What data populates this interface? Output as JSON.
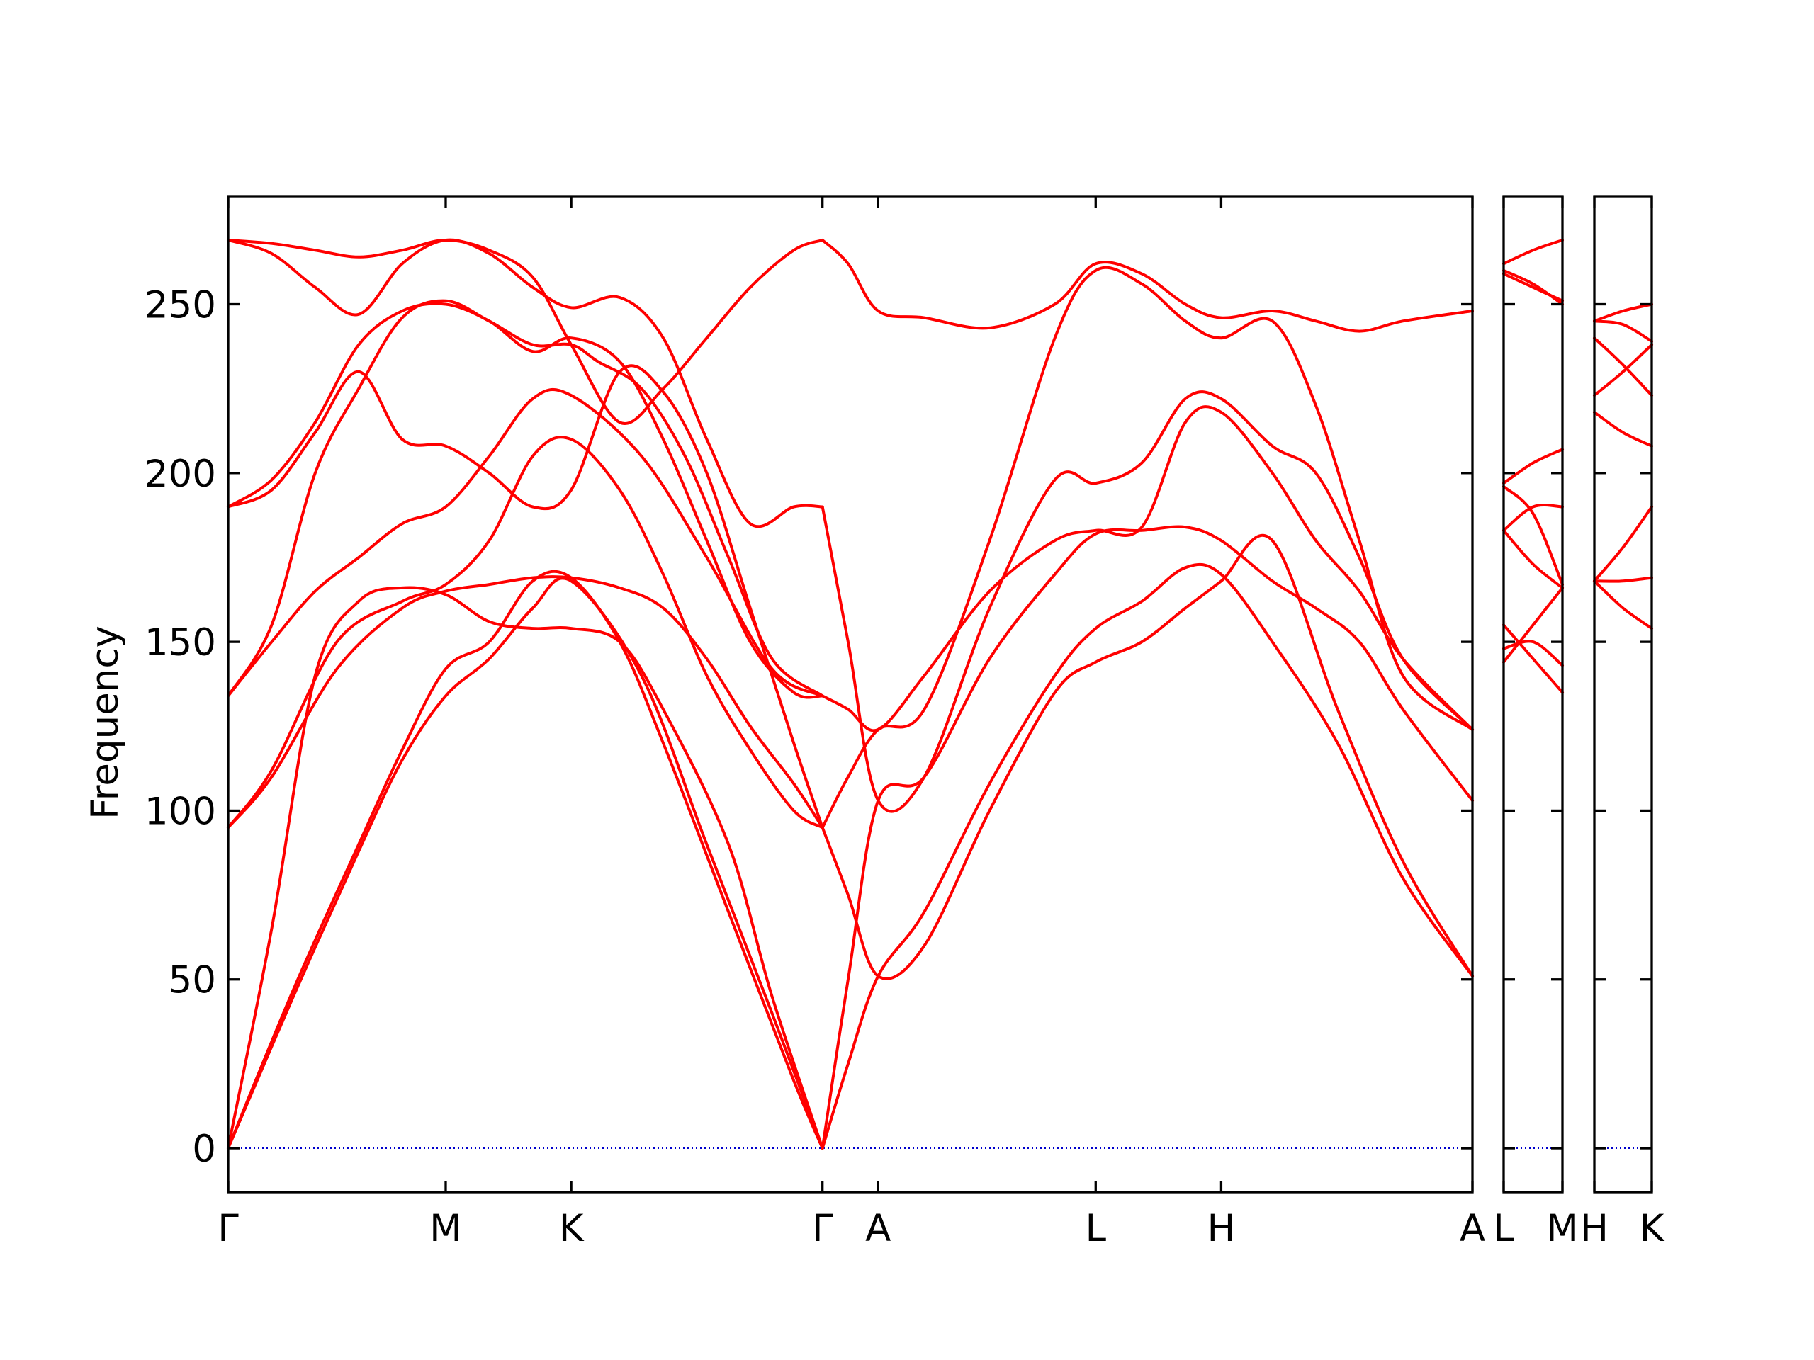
{
  "chart_data": {
    "type": "line",
    "ylabel": "Frequency",
    "ylim": [
      -13,
      282
    ],
    "yticks": [
      0,
      50,
      100,
      150,
      200,
      250
    ],
    "grid": false,
    "panels": [
      {
        "labels": [
          "Γ",
          "M",
          "K",
          "Γ",
          "A",
          "L",
          "H",
          "A"
        ],
        "positions": [
          0,
          1,
          1.577,
          2.732,
          2.988,
          3.988,
          4.565,
          5.72
        ],
        "series": [
          {
            "name": "",
            "x": [
              0,
              0.3,
              0.6,
              0.8,
              1.0,
              1.2,
              1.4,
              1.577,
              1.9,
              2.2,
              2.5,
              2.732
            ],
            "y": [
              0,
              45,
              88,
              115,
              134,
              145,
              160,
              168,
              140,
              90,
              40,
              0
            ]
          },
          {
            "name": "",
            "x": [
              0,
              0.3,
              0.6,
              0.8,
              1.0,
              1.2,
              1.4,
              1.577,
              1.8,
              2.0,
              2.3,
              2.6,
              2.732
            ],
            "y": [
              0,
              47,
              90,
              118,
              142,
              150,
              168,
              169,
              150,
              120,
              70,
              20,
              0
            ]
          },
          {
            "name": "",
            "x": [
              0,
              0.2,
              0.4,
              0.6,
              0.8,
              1.0,
              1.2,
              1.4,
              1.577,
              1.8,
              2.0,
              2.3,
              2.5,
              2.732
            ],
            "y": [
              0,
              65,
              140,
              162,
              166,
              164,
              156,
              154,
              154,
              150,
              130,
              90,
              45,
              0
            ]
          },
          {
            "name": "",
            "x": [
              0,
              0.2,
              0.5,
              0.8,
              1.0,
              1.2,
              1.4,
              1.577,
              1.8,
              2.0,
              2.2,
              2.4,
              2.6,
              2.732
            ],
            "y": [
              95,
              110,
              142,
              160,
              165,
              167,
              169,
              169,
              166,
              160,
              145,
              125,
              108,
              95
            ]
          },
          {
            "name": "",
            "x": [
              0,
              0.2,
              0.5,
              0.8,
              1.0,
              1.2,
              1.4,
              1.577,
              1.8,
              2.0,
              2.2,
              2.4,
              2.6,
              2.732
            ],
            "y": [
              95,
              112,
              150,
              162,
              167,
              180,
              205,
              210,
              195,
              170,
              140,
              118,
              100,
              95
            ]
          },
          {
            "name": "",
            "x": [
              0,
              0.2,
              0.4,
              0.6,
              0.8,
              1.0,
              1.2,
              1.4,
              1.577,
              1.9,
              2.2,
              2.5,
              2.732
            ],
            "y": [
              134,
              150,
              165,
              175,
              185,
              190,
              205,
              222,
              223,
              205,
              175,
              142,
              134
            ]
          },
          {
            "name": "",
            "x": [
              0,
              0.2,
              0.4,
              0.6,
              0.8,
              1.0,
              1.2,
              1.4,
              1.577,
              1.7,
              1.9,
              2.1,
              2.3,
              2.5,
              2.732
            ],
            "y": [
              134,
              155,
              200,
              225,
              246,
              251,
              245,
              238,
              238,
              233,
              225,
              205,
              175,
              145,
              134
            ]
          },
          {
            "name": "",
            "x": [
              0,
              0.2,
              0.4,
              0.6,
              0.8,
              1.0,
              1.2,
              1.4,
              1.577,
              1.8,
              2.0,
              2.2,
              2.4,
              2.6,
              2.732
            ],
            "y": [
              190,
              195,
              212,
              230,
              210,
              208,
              200,
              190,
              195,
              230,
              224,
              200,
              160,
              120,
              95
            ]
          },
          {
            "name": "",
            "x": [
              0,
              0.2,
              0.4,
              0.6,
              0.8,
              1.0,
              1.2,
              1.4,
              1.577,
              1.8,
              2.0,
              2.2,
              2.4,
              2.6,
              2.732
            ],
            "y": [
              190,
              198,
              215,
              238,
              248,
              250,
              245,
              236,
              240,
              233,
              210,
              180,
              150,
              135,
              134
            ]
          },
          {
            "name": "",
            "x": [
              0,
              0.2,
              0.4,
              0.6,
              0.8,
              1.0,
              1.2,
              1.4,
              1.577,
              1.8,
              2.0,
              2.2,
              2.4,
              2.6,
              2.732
            ],
            "y": [
              269,
              265,
              255,
              247,
              262,
              269,
              265,
              255,
              249,
              252,
              240,
              210,
              185,
              190,
              190
            ]
          },
          {
            "name": "",
            "x": [
              0,
              0.2,
              0.4,
              0.6,
              0.8,
              1.0,
              1.2,
              1.4,
              1.577,
              1.8,
              2.0,
              2.2,
              2.4,
              2.6,
              2.732
            ],
            "y": [
              269,
              268,
              266,
              264,
              266,
              269,
              266,
              258,
              238,
              215,
              225,
              240,
              255,
              266,
              269
            ]
          },
          {
            "name": "",
            "x": [
              2.732,
              2.85,
              2.988,
              3.2,
              3.5,
              3.8,
              3.988,
              4.2,
              4.4,
              4.565,
              4.8,
              5.1,
              5.4,
              5.72
            ],
            "y": [
              0,
              25,
              51,
              70,
              108,
              140,
              154,
              162,
              172,
              170,
              150,
              120,
              80,
              51
            ]
          },
          {
            "name": "",
            "x": [
              2.732,
              2.85,
              2.988,
              3.2,
              3.5,
              3.8,
              3.988,
              4.2,
              4.4,
              4.565,
              4.8,
              5.1,
              5.4,
              5.72
            ],
            "y": [
              95,
              75,
              51,
              60,
              100,
              135,
              144,
              150,
              160,
              168,
              180,
              130,
              85,
              51
            ]
          },
          {
            "name": "",
            "x": [
              2.732,
              2.85,
              2.988,
              3.2,
              3.5,
              3.8,
              3.988,
              4.2,
              4.4,
              4.565,
              4.8,
              5.0,
              5.2,
              5.4,
              5.72
            ],
            "y": [
              0,
              50,
              103,
              110,
              145,
              170,
              182,
              183,
              184,
              180,
              168,
              160,
              150,
              130,
              103
            ]
          },
          {
            "name": "",
            "x": [
              2.732,
              2.85,
              2.988,
              3.2,
              3.5,
              3.8,
              3.988,
              4.2,
              4.4,
              4.565,
              4.8,
              5.0,
              5.2,
              5.4,
              5.72
            ],
            "y": [
              134,
              130,
              124,
              140,
              165,
              180,
              183,
              184,
              215,
              218,
              200,
              180,
              165,
              145,
              124
            ]
          },
          {
            "name": "",
            "x": [
              2.732,
              2.85,
              2.988,
              3.2,
              3.5,
              3.8,
              3.988,
              4.2,
              4.4,
              4.565,
              4.8,
              5.0,
              5.2,
              5.4,
              5.72
            ],
            "y": [
              190,
              150,
              103,
              110,
              160,
              198,
              197,
              203,
              222,
              222,
              208,
              200,
              175,
              145,
              124
            ]
          },
          {
            "name": "",
            "x": [
              2.732,
              2.85,
              2.988,
              3.2,
              3.5,
              3.8,
              3.988,
              4.2,
              4.4,
              4.565,
              4.8,
              5.0,
              5.2,
              5.4,
              5.72
            ],
            "y": [
              95,
              110,
              124,
              130,
              180,
              240,
              260,
              256,
              245,
              240,
              245,
              220,
              180,
              140,
              124
            ]
          },
          {
            "name": "",
            "x": [
              2.732,
              2.85,
              2.988,
              3.2,
              3.5,
              3.8,
              3.988,
              4.2,
              4.4,
              4.565,
              4.8,
              5.0,
              5.2,
              5.4,
              5.72
            ],
            "y": [
              269,
              262,
              248,
              246,
              243,
              250,
              262,
              259,
              250,
              246,
              248,
              245,
              242,
              245,
              248
            ]
          }
        ]
      },
      {
        "labels": [
          "L",
          "M"
        ],
        "positions": [
          0,
          1
        ],
        "series": [
          {
            "name": "",
            "x": [
              0,
              0.5,
              1
            ],
            "y": [
              144,
              155,
              166
            ]
          },
          {
            "name": "",
            "x": [
              0,
              0.5,
              1
            ],
            "y": [
              148,
              150,
              143
            ]
          },
          {
            "name": "",
            "x": [
              0,
              0.5,
              1
            ],
            "y": [
              155,
              145,
              135
            ]
          },
          {
            "name": "",
            "x": [
              0,
              0.5,
              1
            ],
            "y": [
              183,
              173,
              166
            ]
          },
          {
            "name": "",
            "x": [
              0,
              0.5,
              1
            ],
            "y": [
              183,
              190,
              190
            ]
          },
          {
            "name": "",
            "x": [
              0,
              0.5,
              1
            ],
            "y": [
              196,
              188,
              167
            ]
          },
          {
            "name": "",
            "x": [
              0,
              0.5,
              1
            ],
            "y": [
              197,
              203,
              207
            ]
          },
          {
            "name": "",
            "x": [
              0,
              0.5,
              1
            ],
            "y": [
              260,
              256,
              250
            ]
          },
          {
            "name": "",
            "x": [
              0,
              0.5,
              1
            ],
            "y": [
              259,
              255,
              251
            ]
          },
          {
            "name": "",
            "x": [
              0,
              0.5,
              1
            ],
            "y": [
              262,
              266,
              269
            ]
          }
        ]
      },
      {
        "labels": [
          "H",
          "K"
        ],
        "positions": [
          0,
          1
        ],
        "series": [
          {
            "name": "",
            "x": [
              0,
              0.5,
              1
            ],
            "y": [
              168,
              178,
              190
            ]
          },
          {
            "name": "",
            "x": [
              0,
              0.5,
              1
            ],
            "y": [
              168,
              168,
              169
            ]
          },
          {
            "name": "",
            "x": [
              0,
              0.5,
              1
            ],
            "y": [
              168,
              160,
              154
            ]
          },
          {
            "name": "",
            "x": [
              0,
              0.5,
              1
            ],
            "y": [
              218,
              212,
              208
            ]
          },
          {
            "name": "",
            "x": [
              0,
              0.5,
              1
            ],
            "y": [
              223,
              230,
              238
            ]
          },
          {
            "name": "",
            "x": [
              0,
              0.5,
              1
            ],
            "y": [
              240,
              232,
              223
            ]
          },
          {
            "name": "",
            "x": [
              0,
              0.5,
              1
            ],
            "y": [
              245,
              244,
              239
            ]
          },
          {
            "name": "",
            "x": [
              0,
              0.5,
              1
            ],
            "y": [
              245,
              248,
              250
            ]
          }
        ]
      }
    ]
  }
}
